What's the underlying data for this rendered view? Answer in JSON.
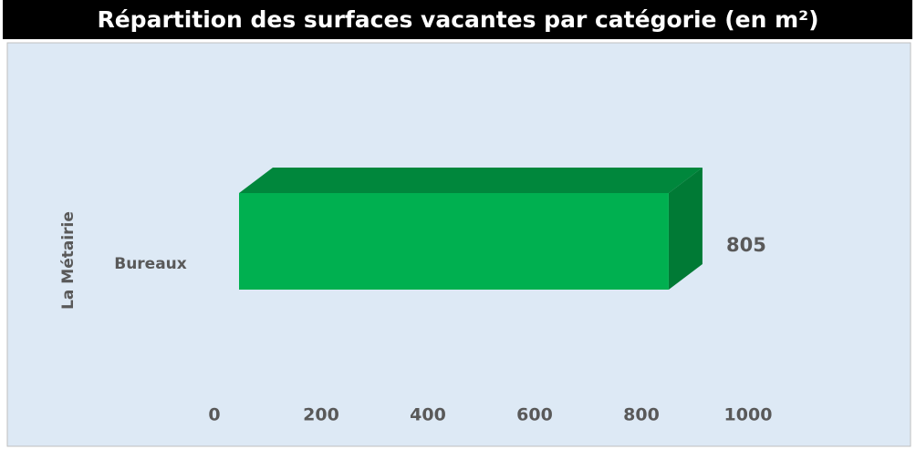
{
  "chart_data": {
    "type": "bar3d_horizontal",
    "title": "Répartition des surfaces vacantes par catégorie (en m²)",
    "group": "La Métairie",
    "categories": [
      "Bureaux"
    ],
    "values": [
      805
    ],
    "color": "#00b050",
    "xlim": [
      0,
      1000
    ],
    "xticks": [
      0,
      200,
      400,
      600,
      800,
      1000
    ]
  }
}
